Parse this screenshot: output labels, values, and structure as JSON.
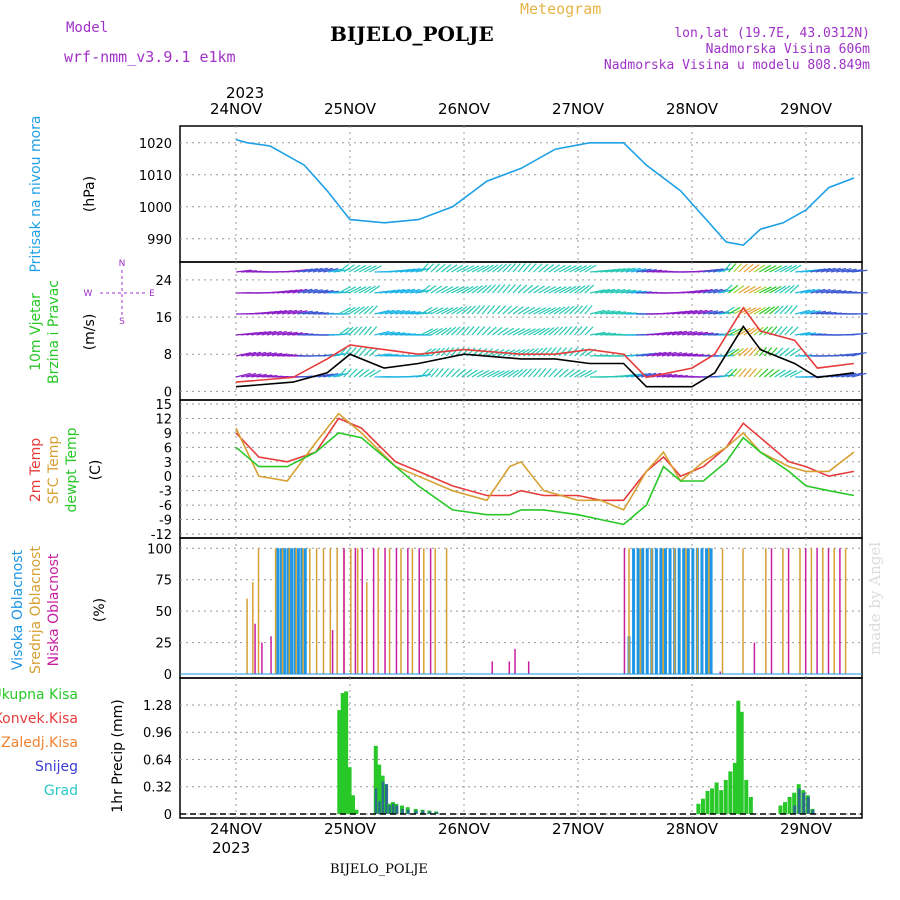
{
  "header": {
    "model_label": "Model",
    "model_name": "wrf-nmm_v3.9.1  e1km",
    "title": "Meteogram",
    "station": "BIJELO_POLJE",
    "lonlat": "lon,lat (19.7E, 43.0312N)",
    "elevation": "Nadmorska Visina 606m",
    "model_elevation": "Nadmorska Visina u modelu 808.849m",
    "year": "2023",
    "footer_station": "BIJELO_POLJE",
    "credit": "made by Angel"
  },
  "colors": {
    "pressure": "#1ea0e6",
    "temp2m": "#e63c3c",
    "sfc_temp": "#d7a032",
    "dewpt": "#28c828",
    "high_cloud": "#1e96e6",
    "mid_cloud": "#d7a032",
    "low_cloud": "#c81ea0",
    "total_precip": "#28c828",
    "snow": "#3c3cd2",
    "magenta_text": "#a032c8",
    "gold_text": "#e6b446"
  },
  "chart_data": [
    {
      "type": "line",
      "panel": "pressure",
      "ylabel_colored": "Pritisak na nivou mora",
      "unit": "(hPa)",
      "ylim": [
        984,
        1024
      ],
      "yticks": [
        990,
        1000,
        1010,
        1020
      ],
      "x_day": [
        0,
        0.1,
        0.3,
        0.6,
        0.8,
        1.0,
        1.3,
        1.6,
        1.9,
        2.2,
        2.5,
        2.8,
        3.1,
        3.4,
        3.6,
        3.9,
        4.1,
        4.3,
        4.45,
        4.6,
        4.8,
        5.0,
        5.2,
        5.42
      ],
      "values": [
        1021,
        1020,
        1019,
        1013,
        1005,
        996,
        995,
        996,
        1000,
        1008,
        1012,
        1018,
        1020,
        1020,
        1013,
        1005,
        997,
        989,
        988,
        993,
        995,
        999,
        1006,
        1009
      ],
      "grid": true
    },
    {
      "type": "barbs",
      "panel": "wind",
      "ylabel_colored": [
        "10m Vjetar",
        "Brzina i Pravac"
      ],
      "unit": "(m/s)",
      "compass": {
        "n": "N",
        "s": "S",
        "e": "E",
        "w": "W"
      },
      "ylim": [
        -1,
        27
      ],
      "yticks": [
        0,
        8,
        16,
        24
      ],
      "x_day": [
        0,
        0.5,
        0.8,
        1.0,
        1.3,
        1.6,
        2.0,
        2.5,
        2.8,
        3.1,
        3.4,
        3.6,
        4.0,
        4.2,
        4.45,
        4.6,
        4.9,
        5.1,
        5.42
      ],
      "speed": [
        1,
        2,
        4,
        8,
        5,
        6,
        8,
        7,
        7,
        6,
        6,
        1,
        1,
        4,
        14,
        9,
        6,
        3,
        4
      ],
      "gust": [
        2,
        3,
        7,
        10,
        9,
        8,
        9,
        8,
        8,
        9,
        8,
        3,
        5,
        8,
        18,
        13,
        11,
        5,
        6
      ],
      "grid": true
    },
    {
      "type": "line",
      "panel": "temperature",
      "ylabel_colored": [
        "2m Temp",
        "SFC Temp",
        "dewpt Temp"
      ],
      "unit": "(C)",
      "ylim": [
        -12,
        15
      ],
      "yticks": [
        -12,
        -9,
        -6,
        -3,
        0,
        3,
        6,
        9,
        12,
        15
      ],
      "x_day": [
        0,
        0.2,
        0.45,
        0.7,
        0.9,
        1.1,
        1.4,
        1.6,
        1.9,
        2.2,
        2.4,
        2.5,
        2.7,
        3.0,
        3.2,
        3.4,
        3.6,
        3.75,
        3.9,
        4.1,
        4.3,
        4.45,
        4.6,
        4.85,
        5.0,
        5.2,
        5.42
      ],
      "series": [
        {
          "name": "2m Temp",
          "values": [
            9,
            4,
            3,
            5,
            12,
            10,
            3,
            1,
            -2,
            -4,
            -4,
            -3,
            -4,
            -4,
            -5,
            -5,
            1,
            4,
            0,
            2,
            6,
            11,
            8,
            3,
            2,
            0,
            1
          ]
        },
        {
          "name": "SFC Temp",
          "values": [
            10,
            0,
            -1,
            7,
            13,
            9,
            2,
            0,
            -3,
            -5,
            2,
            3,
            -3,
            -5,
            -5,
            -7,
            1,
            5,
            -1,
            3,
            6,
            9,
            5,
            2,
            1,
            1,
            5
          ]
        },
        {
          "name": "dewpt Temp",
          "values": [
            6,
            2,
            2,
            5,
            9,
            8,
            2,
            -2,
            -7,
            -8,
            -8,
            -7,
            -7,
            -8,
            -9,
            -10,
            -6,
            2,
            -1,
            -1,
            3,
            8,
            5,
            1,
            -2,
            -3,
            -4
          ]
        }
      ],
      "grid": true
    },
    {
      "type": "bar",
      "panel": "cloud",
      "ylabel_colored": [
        "Visoka Oblacnost",
        "Srednja Oblacnost",
        "Niska Oblacnost"
      ],
      "unit": "(%)",
      "ylim": [
        0,
        105
      ],
      "yticks": [
        0,
        25,
        50,
        75,
        100
      ],
      "series": [
        {
          "name": "Visoka Oblacnost",
          "x_day": [
            0.42,
            0.45,
            0.48,
            0.51,
            0.54,
            0.57,
            0.6,
            0.63,
            0.66,
            3.5,
            3.54,
            3.58,
            3.62,
            3.66,
            3.7,
            3.74,
            3.78,
            3.82,
            3.86,
            3.9,
            3.94,
            3.98,
            4.02,
            4.06,
            4.1,
            4.14,
            4.18,
            4.22
          ],
          "values": [
            100,
            100,
            100,
            100,
            100,
            100,
            100,
            100,
            100,
            30,
            100,
            100,
            100,
            100,
            100,
            100,
            100,
            100,
            100,
            100,
            100,
            100,
            100,
            100,
            100,
            100,
            100,
            100
          ]
        },
        {
          "name": "Srednja Oblacnost",
          "x_day": [
            0.15,
            0.2,
            0.25,
            0.4,
            0.46,
            0.52,
            0.58,
            0.64,
            0.7,
            0.76,
            0.82,
            0.88,
            0.94,
            1.0,
            1.06,
            1.12,
            1.2,
            1.3,
            1.4,
            1.5,
            1.6,
            1.7,
            1.8,
            1.9,
            3.5,
            3.6,
            3.7,
            3.8,
            3.9,
            4.0,
            4.1,
            4.2,
            4.32,
            4.5,
            4.7,
            4.85,
            5.0,
            5.1,
            5.2,
            5.3,
            5.4
          ],
          "values": [
            60,
            73,
            100,
            100,
            100,
            100,
            100,
            100,
            100,
            100,
            100,
            100,
            100,
            100,
            100,
            100,
            73,
            100,
            100,
            100,
            100,
            100,
            100,
            100,
            100,
            100,
            100,
            100,
            100,
            100,
            100,
            100,
            100,
            100,
            100,
            100,
            100,
            100,
            100,
            100,
            100
          ]
        },
        {
          "name": "Niska Oblacnost",
          "x_day": [
            0.22,
            0.28,
            0.36,
            0.9,
            1.0,
            1.1,
            1.16,
            1.26,
            1.36,
            1.46,
            1.56,
            1.66,
            1.76,
            2.3,
            2.45,
            2.5,
            2.62,
            3.46,
            4.3,
            4.6,
            4.75,
            4.9,
            5.05,
            5.15,
            5.25,
            5.35
          ],
          "values": [
            40,
            25,
            30,
            35,
            100,
            100,
            100,
            100,
            100,
            100,
            100,
            100,
            100,
            10,
            10,
            20,
            10,
            100,
            2,
            25,
            100,
            100,
            100,
            100,
            100,
            100
          ]
        }
      ],
      "grid": true
    },
    {
      "type": "bar",
      "panel": "precip",
      "ylabel_colored": [
        "Ukupna Kisa",
        "Konvek.Kisa",
        "Zaledj.Kisa",
        "Snijeg",
        "Grad"
      ],
      "ylabel_colors": [
        "#28c828",
        "#e63c3c",
        "#f08232",
        "#3c3cd2",
        "#28c8c8"
      ],
      "unit": "1hr Precip (mm)",
      "ylim": [
        0,
        1.55
      ],
      "yticks": [
        0,
        0.32,
        0.64,
        0.96,
        1.28
      ],
      "ytick_labels": [
        "0",
        "0.32",
        "0.64",
        "0.96",
        "1.28"
      ],
      "x_day": [
        0.95,
        0.98,
        1.01,
        1.04,
        1.07,
        1.1,
        1.27,
        1.3,
        1.33,
        1.36,
        1.39,
        1.42,
        1.45,
        1.5,
        1.55,
        1.62,
        1.68,
        1.74,
        1.8,
        4.1,
        4.14,
        4.18,
        4.22,
        4.26,
        4.3,
        4.34,
        4.38,
        4.42,
        4.45,
        4.48,
        4.52,
        4.56,
        4.82,
        4.86,
        4.9,
        4.94,
        4.98,
        5.02,
        5.06,
        5.1
      ],
      "series": [
        {
          "name": "Ukupna Kisa",
          "values": [
            1.22,
            1.42,
            1.44,
            0.55,
            0.22,
            0.05,
            0.8,
            0.58,
            0.45,
            0.35,
            0.12,
            0.14,
            0.12,
            0.1,
            0.08,
            0.06,
            0.05,
            0.04,
            0.03,
            0.12,
            0.18,
            0.27,
            0.3,
            0.37,
            0.28,
            0.4,
            0.5,
            0.6,
            1.33,
            1.2,
            0.4,
            0.2,
            0.1,
            0.14,
            0.2,
            0.25,
            0.35,
            0.28,
            0.22,
            0.06
          ]
        },
        {
          "name": "Snijeg",
          "values": [
            0,
            0,
            0,
            0,
            0,
            0,
            0.3,
            0.15,
            0.38,
            0.35,
            0.1,
            0.12,
            0.1,
            0.06,
            0.05,
            0.04,
            0.04,
            0.03,
            0.02,
            0,
            0,
            0,
            0,
            0,
            0,
            0,
            0,
            0,
            0,
            0,
            0,
            0,
            0,
            0,
            0,
            0.1,
            0.3,
            0.25,
            0.2,
            0.05
          ]
        }
      ],
      "grid": true
    }
  ],
  "x_axis": {
    "days": [
      "24NOV",
      "25NOV",
      "26NOV",
      "27NOV",
      "28NOV",
      "29NOV"
    ],
    "year": "2023"
  }
}
